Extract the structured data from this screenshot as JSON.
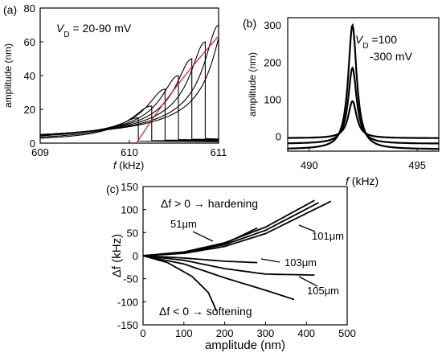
{
  "chart_data": [
    {
      "panel": "(a)",
      "type": "line",
      "ylabel": "amplitude",
      "ylabel_unit": "(nm)",
      "xlabel_sym": "f",
      "xlabel_unit": "(kHz)",
      "annotation": "V<sub>D</sub> = 20-90 mV",
      "annotation_parts": {
        "v": "V",
        "sub": "D",
        "rest": " = 20-90 mV"
      },
      "xlim": [
        609,
        611
      ],
      "ylim": [
        0,
        80
      ],
      "xticks": [
        "609",
        "610",
        "611"
      ],
      "yticks": [
        "0",
        "20",
        "40",
        "60",
        "80"
      ],
      "curve_color": "#000000",
      "backbone_color": "#e01818",
      "jump_frequencies_kHz": [
        610.1,
        610.25,
        610.4,
        610.55,
        610.7,
        610.85,
        611.0
      ],
      "series_peaks_nm": [
        15,
        22,
        32,
        40,
        50,
        60,
        70,
        76
      ]
    },
    {
      "panel": "(b)",
      "type": "line",
      "ylabel": "amplitude (nm)",
      "xlabel_sym": "f",
      "xlabel_unit": "(kHz)",
      "annotation_parts": {
        "v": "V",
        "sub": "D",
        "rest": " =100",
        "line2": "-300 mV"
      },
      "xlim": [
        489,
        496
      ],
      "ylim": [
        -40,
        320
      ],
      "xticks": [
        "490",
        "495"
      ],
      "yticks": [
        "0",
        "100",
        "200",
        "300"
      ],
      "center_kHz": 492,
      "series": [
        {
          "name": "",
          "peak": 95,
          "base": -5
        },
        {
          "name": "",
          "peak": 185,
          "base": -20
        },
        {
          "name": "",
          "peak": 300,
          "base": -35
        }
      ]
    },
    {
      "panel": "(c)",
      "type": "line",
      "xlabel": "amplitude (nm)",
      "ylabel": "Δf (kHz)",
      "xlim": [
        0,
        500
      ],
      "ylim": [
        -150,
        150
      ],
      "xticks": [
        "0",
        "100",
        "200",
        "300",
        "400",
        "500"
      ],
      "yticks": [
        "150",
        "100",
        "50",
        "0",
        "-50",
        "-100",
        "-150"
      ],
      "hardening_text": "Δf > 0 → hardening",
      "softening_text": "Δf < 0 → softening",
      "hardening_color": "#d42020",
      "softening_color": "#18a040",
      "labels": [
        "51μm",
        "101μm",
        "103μm",
        "105μm"
      ],
      "series": [
        {
          "name": "51μm",
          "points": [
            [
              0,
              0
            ],
            [
              100,
              8
            ],
            [
              200,
              28
            ],
            [
              300,
              62
            ],
            [
              420,
              120
            ]
          ]
        },
        {
          "name": "",
          "points": [
            [
              0,
              0
            ],
            [
              100,
              6
            ],
            [
              200,
              24
            ],
            [
              300,
              55
            ],
            [
              430,
              115
            ]
          ]
        },
        {
          "name": "101μm",
          "points": [
            [
              0,
              0
            ],
            [
              100,
              5
            ],
            [
              200,
              20
            ],
            [
              300,
              48
            ],
            [
              460,
              118
            ]
          ]
        },
        {
          "name": "",
          "points": [
            [
              0,
              0
            ],
            [
              100,
              7
            ],
            [
              200,
              26
            ],
            [
              280,
              60
            ]
          ]
        },
        {
          "name": "103μm",
          "points": [
            [
              0,
              0
            ],
            [
              100,
              -5
            ],
            [
              200,
              -12
            ],
            [
              280,
              -15
            ]
          ]
        },
        {
          "name": "",
          "points": [
            [
              0,
              0
            ],
            [
              100,
              -10
            ],
            [
              200,
              -28
            ],
            [
              300,
              -40
            ],
            [
              420,
              -42
            ]
          ]
        },
        {
          "name": "105μm",
          "points": [
            [
              0,
              0
            ],
            [
              100,
              -18
            ],
            [
              200,
              -48
            ],
            [
              300,
              -75
            ],
            [
              370,
              -95
            ]
          ]
        },
        {
          "name": "",
          "points": [
            [
              0,
              0
            ],
            [
              60,
              -15
            ],
            [
              120,
              -45
            ],
            [
              160,
              -80
            ],
            [
              180,
              -120
            ]
          ]
        }
      ]
    }
  ]
}
